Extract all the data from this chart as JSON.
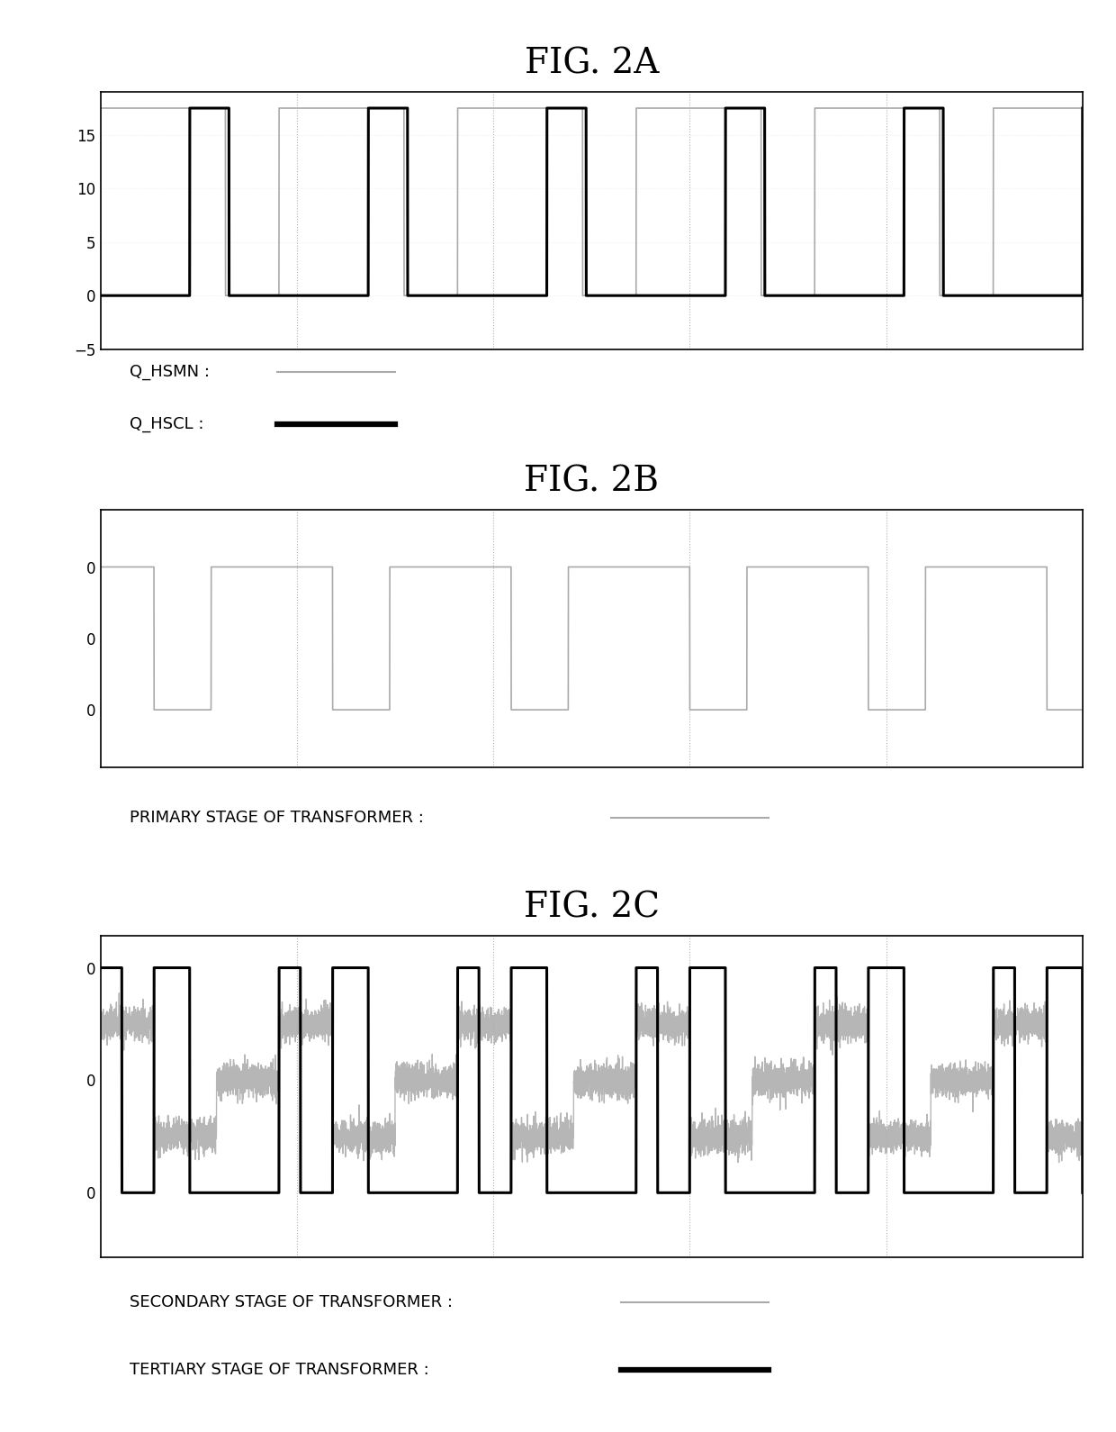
{
  "fig_title_a": "FIG. 2A",
  "fig_title_b": "FIG. 2B",
  "fig_title_c": "FIG. 2C",
  "legend_a_thin": "Q_HSMN :",
  "legend_a_thick": "Q_HSCL :",
  "legend_b": "PRIMARY STAGE OF TRANSFORMER :",
  "legend_c_thin": "SECONDARY STAGE OF TRANSFORMER :",
  "legend_c_thick": "TERTIARY STAGE OF TRANSFORMER :",
  "panel_a_ylim": [
    -5,
    19
  ],
  "panel_a_yticks": [
    -5,
    0,
    5,
    10,
    15
  ],
  "color_thin": "#aaaaaa",
  "color_thick": "#000000",
  "background": "#ffffff",
  "title_fontsize": 28,
  "label_fontsize": 13,
  "tick_fontsize": 12
}
